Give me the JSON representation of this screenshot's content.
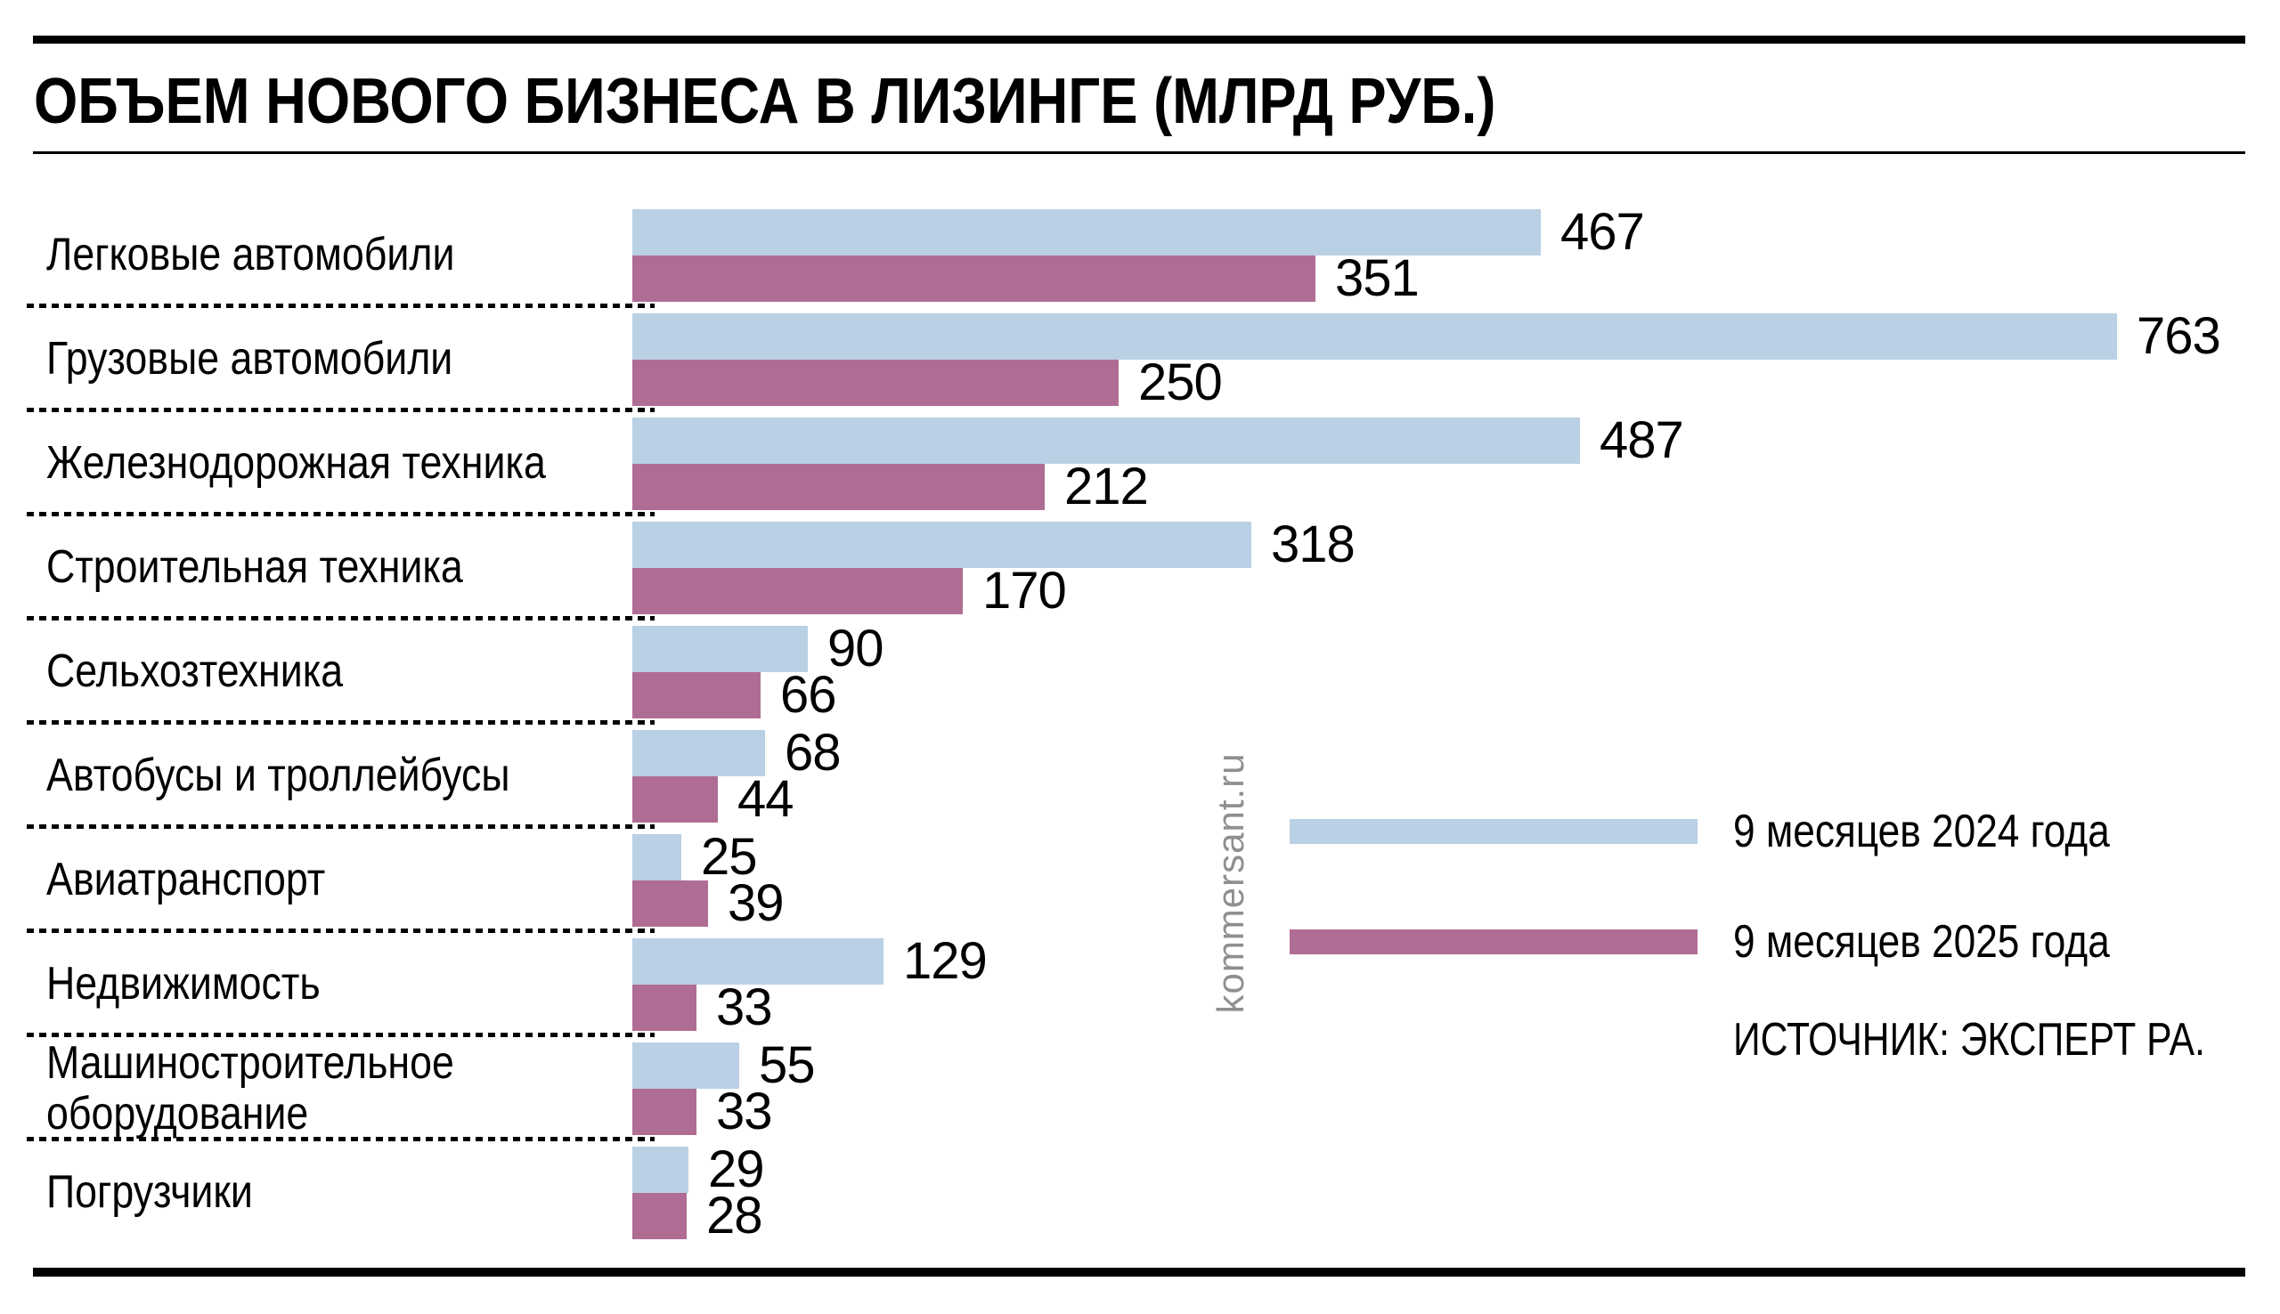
{
  "title": "ОБЪЕМ НОВОГО БИЗНЕСА В ЛИЗИНГЕ (МЛРД РУБ.)",
  "watermark": "kommersant.ru",
  "source_note": "ИСТОЧНИК: ЭКСПЕРТ РА.",
  "colors": {
    "bar_2024": "#bad0e4",
    "bar_2025": "#b06d94",
    "rule": "#000000",
    "watermark_gray": "#8f8f8f"
  },
  "legend": {
    "items": [
      {
        "label": "9 месяцев 2024 года",
        "color_key": "bar_2024"
      },
      {
        "label": "9 месяцев 2025 года",
        "color_key": "bar_2025"
      }
    ]
  },
  "chart_data": {
    "type": "bar",
    "orientation": "horizontal",
    "unit": "млрд руб.",
    "title": "ОБЪЕМ НОВОГО БИЗНЕСА В ЛИЗИНГЕ (МЛРД РУБ.)",
    "categories": [
      "Легковые автомобили",
      "Грузовые автомобили",
      "Железнодорожная техника",
      "Строительная техника",
      "Сельхозтехника",
      "Автобусы и троллейбусы",
      "Авиатранспорт",
      "Недвижимость",
      "Машиностроительное оборудование",
      "Погрузчики"
    ],
    "series": [
      {
        "name": "9 месяцев 2024 года",
        "color_key": "bar_2024",
        "values": [
          467,
          763,
          487,
          318,
          90,
          68,
          25,
          129,
          55,
          29
        ]
      },
      {
        "name": "9 месяцев 2025 года",
        "color_key": "bar_2025",
        "values": [
          351,
          250,
          212,
          170,
          66,
          44,
          39,
          33,
          33,
          28
        ]
      }
    ],
    "xlim": [
      0,
      763
    ],
    "value_labels": true,
    "grid": false,
    "legend_position": "right-middle"
  }
}
